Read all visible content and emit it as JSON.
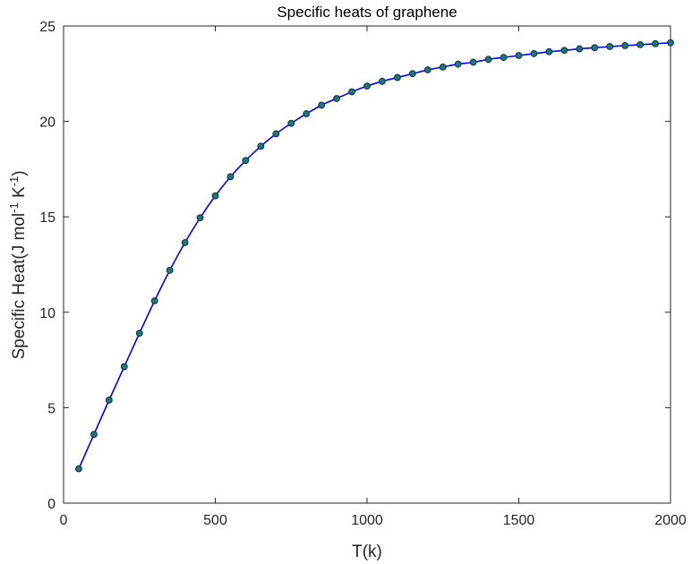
{
  "chart_data": {
    "type": "line",
    "title": "Specific heats of graphene",
    "xlabel": "T(k)",
    "ylabel": {
      "prefix": "Specific Heat(J mol",
      "sup1": "-1",
      "middle": " K",
      "sup2": "-1",
      "suffix": ")"
    },
    "xlim": [
      0,
      2000
    ],
    "ylim": [
      0,
      25
    ],
    "xticks": [
      0,
      500,
      1000,
      1500,
      2000
    ],
    "yticks": [
      0,
      5,
      10,
      15,
      20,
      25
    ],
    "grid": false,
    "line_color": "#0000ff",
    "marker_fill": "#1d7a73",
    "marker_edge": "#0a2a55",
    "x": [
      50,
      100,
      150,
      200,
      250,
      300,
      350,
      400,
      450,
      500,
      550,
      600,
      650,
      700,
      750,
      800,
      850,
      900,
      950,
      1000,
      1050,
      1100,
      1150,
      1200,
      1250,
      1300,
      1350,
      1400,
      1450,
      1500,
      1550,
      1600,
      1650,
      1700,
      1750,
      1800,
      1850,
      1900,
      1950,
      2000
    ],
    "y": [
      1.8,
      3.6,
      5.4,
      7.15,
      8.9,
      10.6,
      12.2,
      13.65,
      14.95,
      16.1,
      17.1,
      17.95,
      18.7,
      19.35,
      19.9,
      20.4,
      20.85,
      21.2,
      21.55,
      21.85,
      22.1,
      22.3,
      22.5,
      22.7,
      22.85,
      23.0,
      23.1,
      23.25,
      23.35,
      23.45,
      23.55,
      23.65,
      23.72,
      23.8,
      23.86,
      23.92,
      23.97,
      24.02,
      24.07,
      24.12
    ]
  }
}
